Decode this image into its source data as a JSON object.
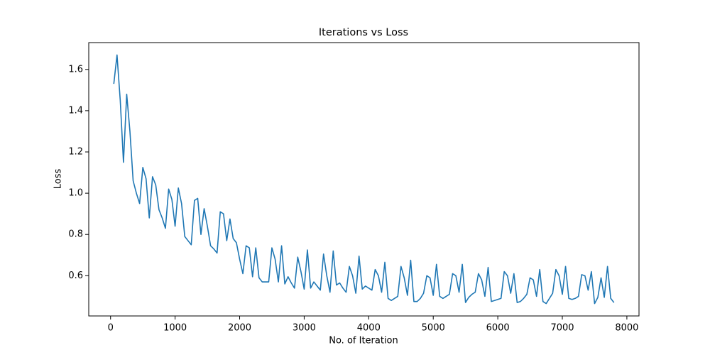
{
  "chart_data": {
    "type": "line",
    "title": "Iterations vs Loss",
    "x_label": "No. of Iteration",
    "y_label": "Loss",
    "x": [
      50,
      100,
      150,
      200,
      250,
      300,
      350,
      400,
      450,
      500,
      550,
      600,
      650,
      700,
      750,
      800,
      850,
      900,
      950,
      1000,
      1050,
      1100,
      1150,
      1200,
      1250,
      1300,
      1350,
      1400,
      1450,
      1500,
      1550,
      1600,
      1650,
      1700,
      1750,
      1800,
      1850,
      1900,
      1950,
      2000,
      2050,
      2100,
      2150,
      2200,
      2250,
      2300,
      2350,
      2400,
      2450,
      2500,
      2550,
      2600,
      2650,
      2700,
      2750,
      2800,
      2850,
      2900,
      2950,
      3000,
      3050,
      3100,
      3150,
      3200,
      3250,
      3300,
      3350,
      3400,
      3450,
      3500,
      3550,
      3600,
      3650,
      3700,
      3750,
      3800,
      3850,
      3900,
      3950,
      4000,
      4050,
      4100,
      4150,
      4200,
      4250,
      4300,
      4350,
      4400,
      4450,
      4500,
      4550,
      4600,
      4650,
      4700,
      4750,
      4800,
      4850,
      4900,
      4950,
      5000,
      5050,
      5100,
      5150,
      5200,
      5250,
      5300,
      5350,
      5400,
      5450,
      5500,
      5550,
      5600,
      5650,
      5700,
      5750,
      5800,
      5850,
      5900,
      5950,
      6000,
      6050,
      6100,
      6150,
      6200,
      6250,
      6300,
      6350,
      6400,
      6450,
      6500,
      6550,
      6600,
      6650,
      6700,
      6750,
      6800,
      6850,
      6900,
      6950,
      7000,
      7050,
      7100,
      7150,
      7200,
      7250,
      7300,
      7350,
      7400,
      7450,
      7500,
      7550,
      7600,
      7650,
      7700,
      7750,
      7800
    ],
    "series": [
      {
        "name": "Loss",
        "color": "#1f77b4",
        "values": [
          1.53,
          1.67,
          1.45,
          1.15,
          1.48,
          1.3,
          1.06,
          1.0,
          0.95,
          1.125,
          1.07,
          0.88,
          1.08,
          1.04,
          0.92,
          0.88,
          0.83,
          1.02,
          0.97,
          0.84,
          1.025,
          0.95,
          0.79,
          0.77,
          0.75,
          0.965,
          0.975,
          0.8,
          0.925,
          0.84,
          0.745,
          0.73,
          0.71,
          0.91,
          0.9,
          0.77,
          0.875,
          0.78,
          0.76,
          0.68,
          0.61,
          0.745,
          0.735,
          0.595,
          0.735,
          0.59,
          0.57,
          0.57,
          0.57,
          0.735,
          0.68,
          0.57,
          0.745,
          0.56,
          0.595,
          0.565,
          0.54,
          0.69,
          0.62,
          0.535,
          0.725,
          0.54,
          0.57,
          0.55,
          0.53,
          0.705,
          0.6,
          0.52,
          0.72,
          0.555,
          0.565,
          0.54,
          0.52,
          0.645,
          0.6,
          0.515,
          0.695,
          0.535,
          0.55,
          0.54,
          0.53,
          0.63,
          0.6,
          0.52,
          0.665,
          0.49,
          0.48,
          0.49,
          0.5,
          0.645,
          0.59,
          0.505,
          0.675,
          0.475,
          0.475,
          0.49,
          0.515,
          0.6,
          0.59,
          0.505,
          0.655,
          0.5,
          0.49,
          0.5,
          0.51,
          0.61,
          0.6,
          0.52,
          0.655,
          0.47,
          0.495,
          0.51,
          0.52,
          0.61,
          0.58,
          0.5,
          0.64,
          0.475,
          0.48,
          0.485,
          0.49,
          0.62,
          0.6,
          0.515,
          0.61,
          0.47,
          0.475,
          0.49,
          0.51,
          0.59,
          0.58,
          0.5,
          0.63,
          0.475,
          0.465,
          0.49,
          0.515,
          0.63,
          0.6,
          0.51,
          0.645,
          0.49,
          0.485,
          0.49,
          0.5,
          0.605,
          0.6,
          0.53,
          0.62,
          0.465,
          0.495,
          0.59,
          0.495,
          0.645,
          0.49,
          0.47
        ]
      }
    ],
    "xlim": [
      -338,
      8188
    ],
    "ylim": [
      0.405,
      1.73
    ],
    "xticks": [
      0,
      1000,
      2000,
      3000,
      4000,
      5000,
      6000,
      7000,
      8000
    ],
    "yticks": [
      0.6,
      0.8,
      {
        "value": 1.0,
        "label": "1.0"
      },
      1.2,
      1.4,
      1.6
    ],
    "grid": false
  }
}
